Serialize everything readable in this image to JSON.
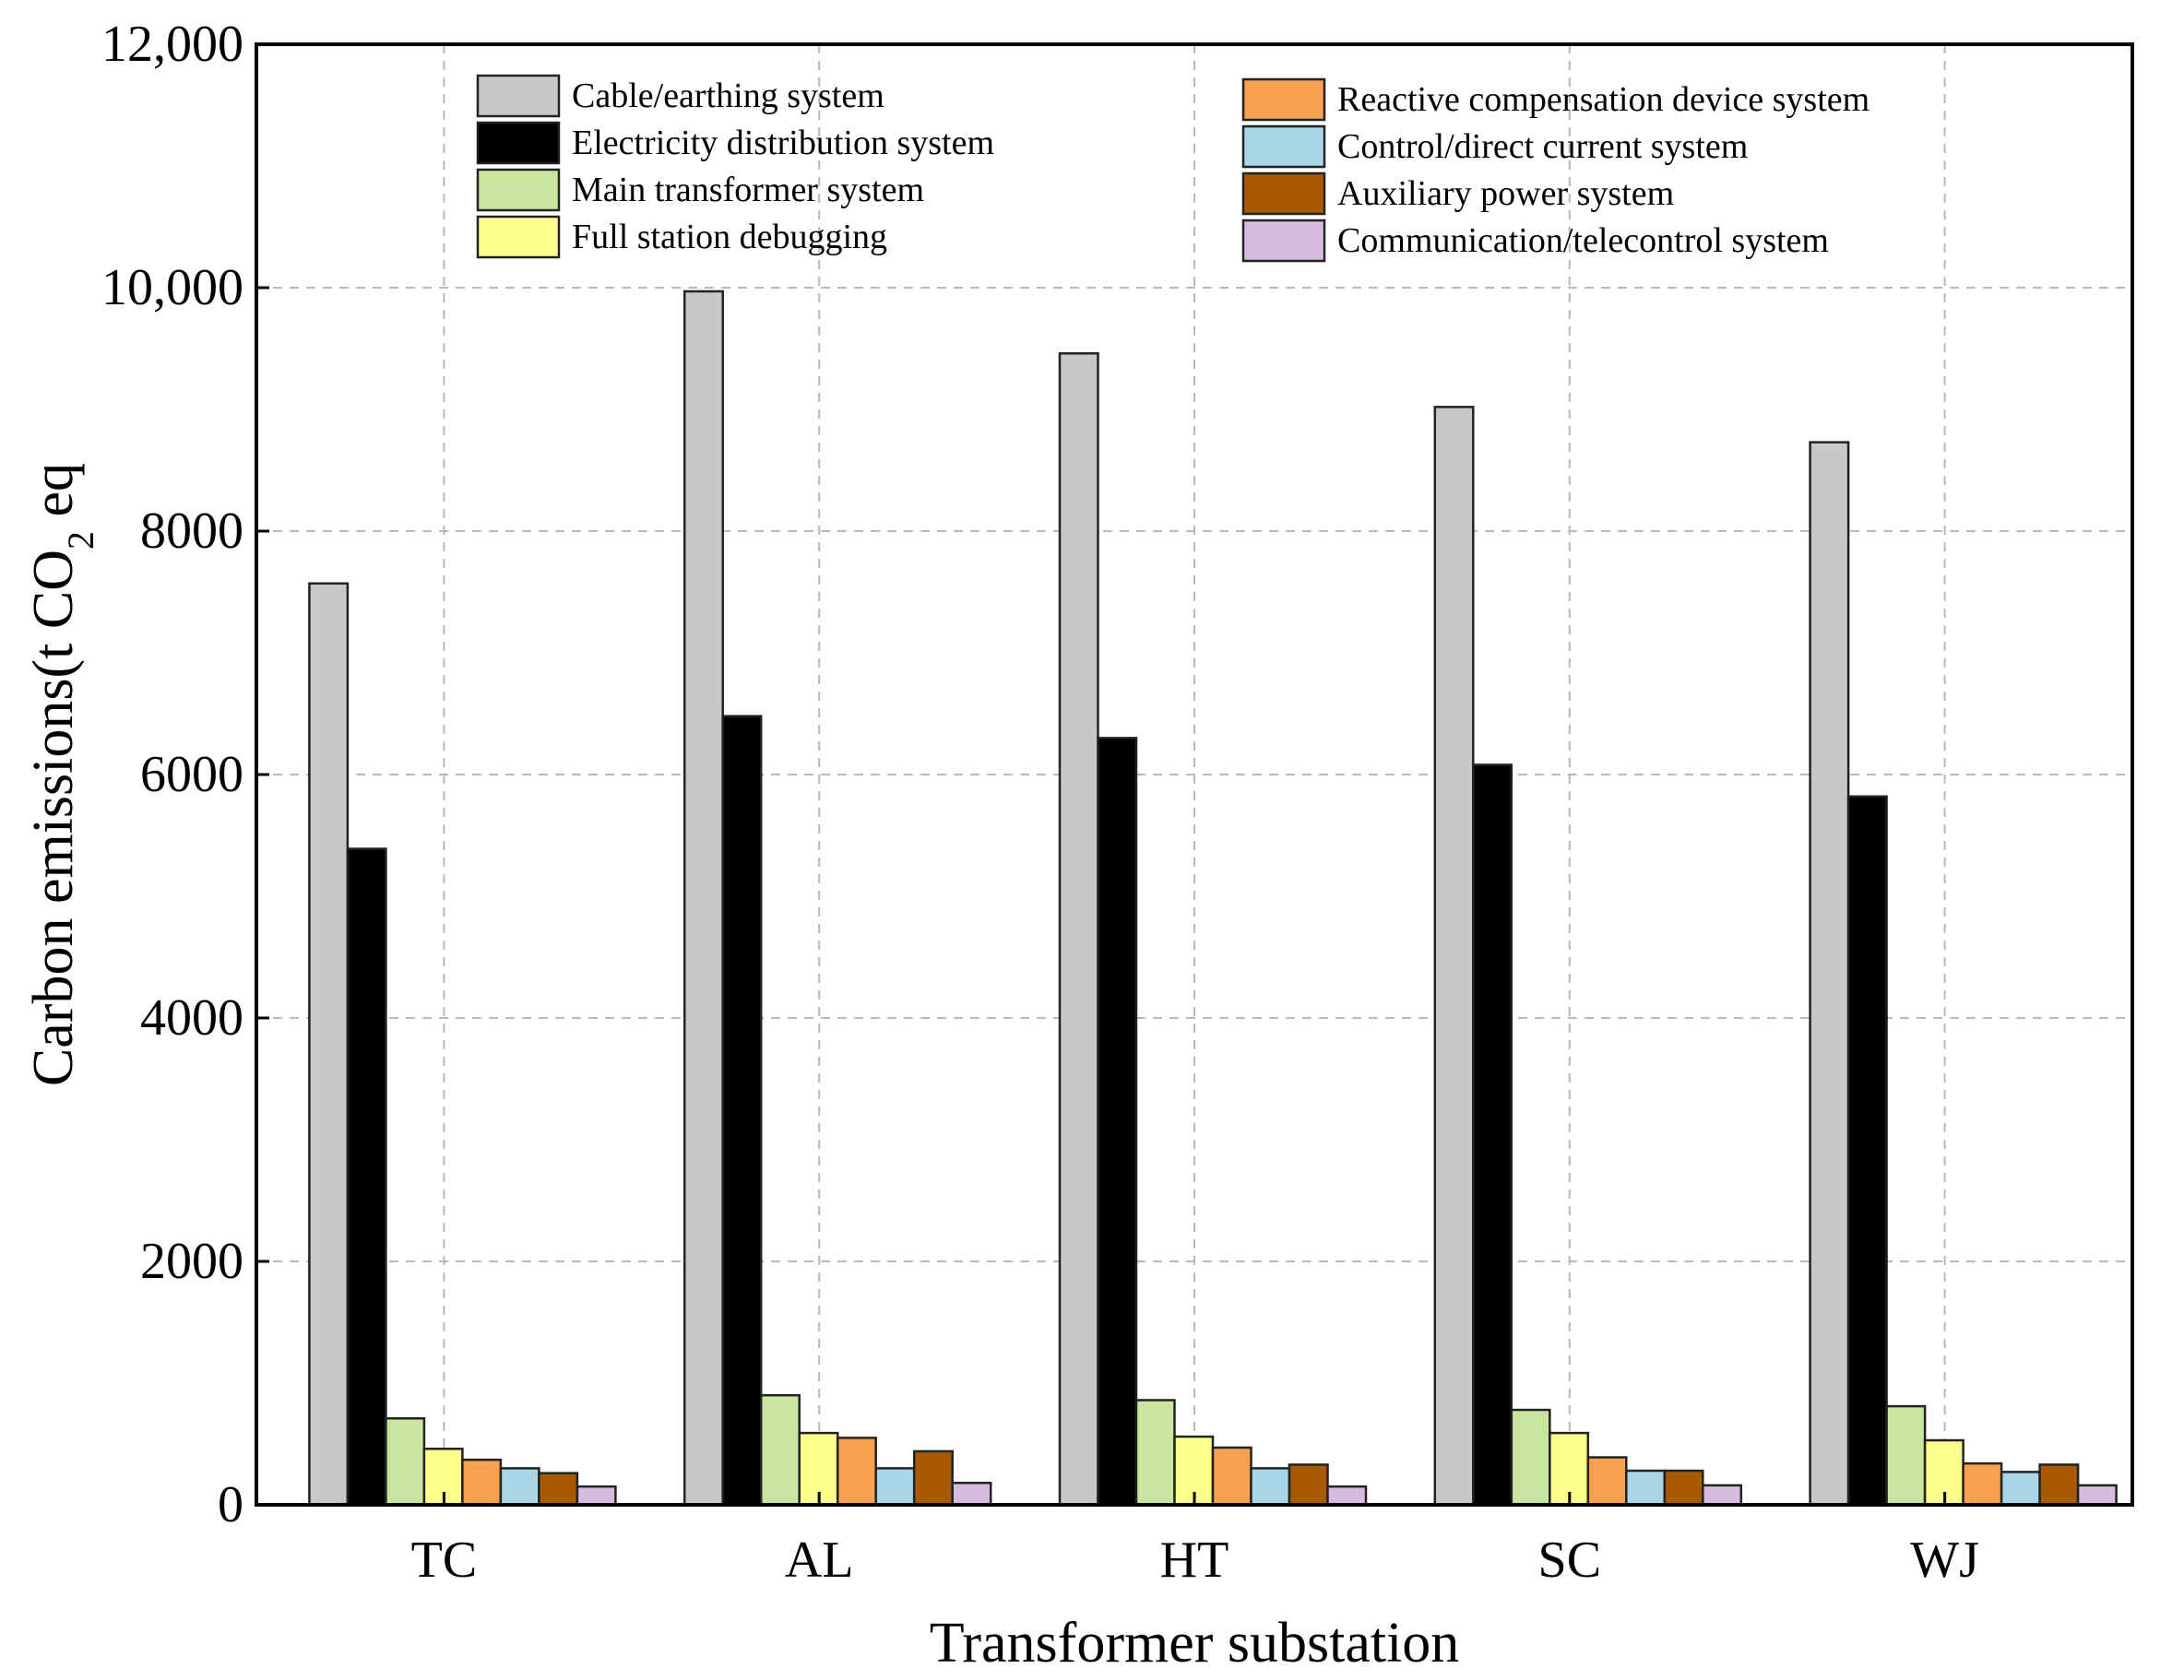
{
  "chart_data": {
    "type": "bar",
    "xlabel": "Transformer substation",
    "ylabel_parts": [
      "Carbon emissions(t CO",
      "2",
      " eq"
    ],
    "categories": [
      "TC",
      "AL",
      "HT",
      "SC",
      "WJ"
    ],
    "ylim": [
      0,
      12000
    ],
    "yticks": [
      0,
      2000,
      4000,
      6000,
      8000,
      10000,
      12000
    ],
    "ytick_labels": [
      "0",
      "2000",
      "4000",
      "6000",
      "8000",
      "10,000",
      "12,000"
    ],
    "grid": true,
    "legend_position": "top, two columns",
    "series": [
      {
        "name": "Cable/earthing system",
        "color": "#c8c8c8",
        "values": [
          7570,
          9970,
          9460,
          9020,
          8730
        ]
      },
      {
        "name": "Electricity distribution system",
        "color": "#000000",
        "values": [
          5390,
          6480,
          6300,
          6080,
          5820
        ]
      },
      {
        "name": "Main transformer system",
        "color": "#c9e6a0",
        "values": [
          710,
          900,
          860,
          780,
          810
        ]
      },
      {
        "name": "Full station debugging",
        "color": "#ffff8c",
        "values": [
          460,
          590,
          560,
          590,
          530
        ]
      },
      {
        "name": "Reactive compensation device system",
        "color": "#f7a04d",
        "values": [
          370,
          550,
          470,
          390,
          340
        ]
      },
      {
        "name": "Control/direct current system",
        "color": "#a8d6e6",
        "values": [
          300,
          300,
          300,
          280,
          270
        ]
      },
      {
        "name": "Auxiliary power system",
        "color": "#a85a00",
        "values": [
          260,
          440,
          330,
          280,
          330
        ]
      },
      {
        "name": "Communication/telecontrol system",
        "color": "#d8bce0",
        "values": [
          150,
          180,
          150,
          160,
          160
        ]
      }
    ]
  }
}
